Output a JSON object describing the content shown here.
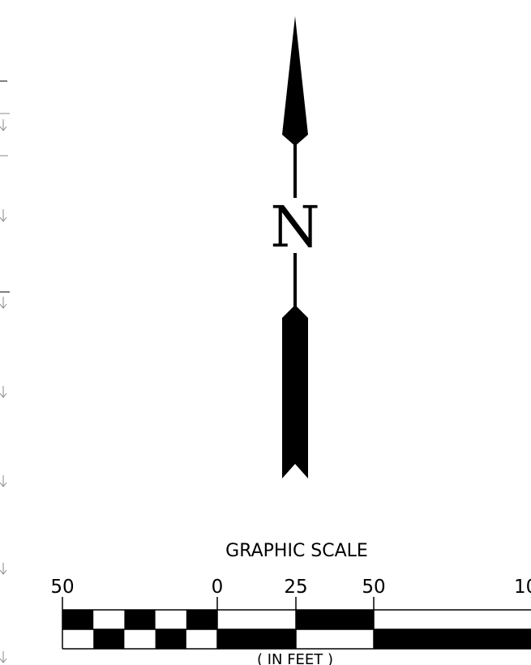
{
  "north_arrow": {
    "letter": "N"
  },
  "graphic_scale": {
    "title": "GRAPHIC SCALE",
    "units_label": "( IN FEET )",
    "tick_labels": [
      "50",
      "0",
      "25",
      "50",
      "10"
    ]
  },
  "colors": {
    "ink": "#000000",
    "paper": "#ffffff",
    "edge_marks": "#888888"
  }
}
